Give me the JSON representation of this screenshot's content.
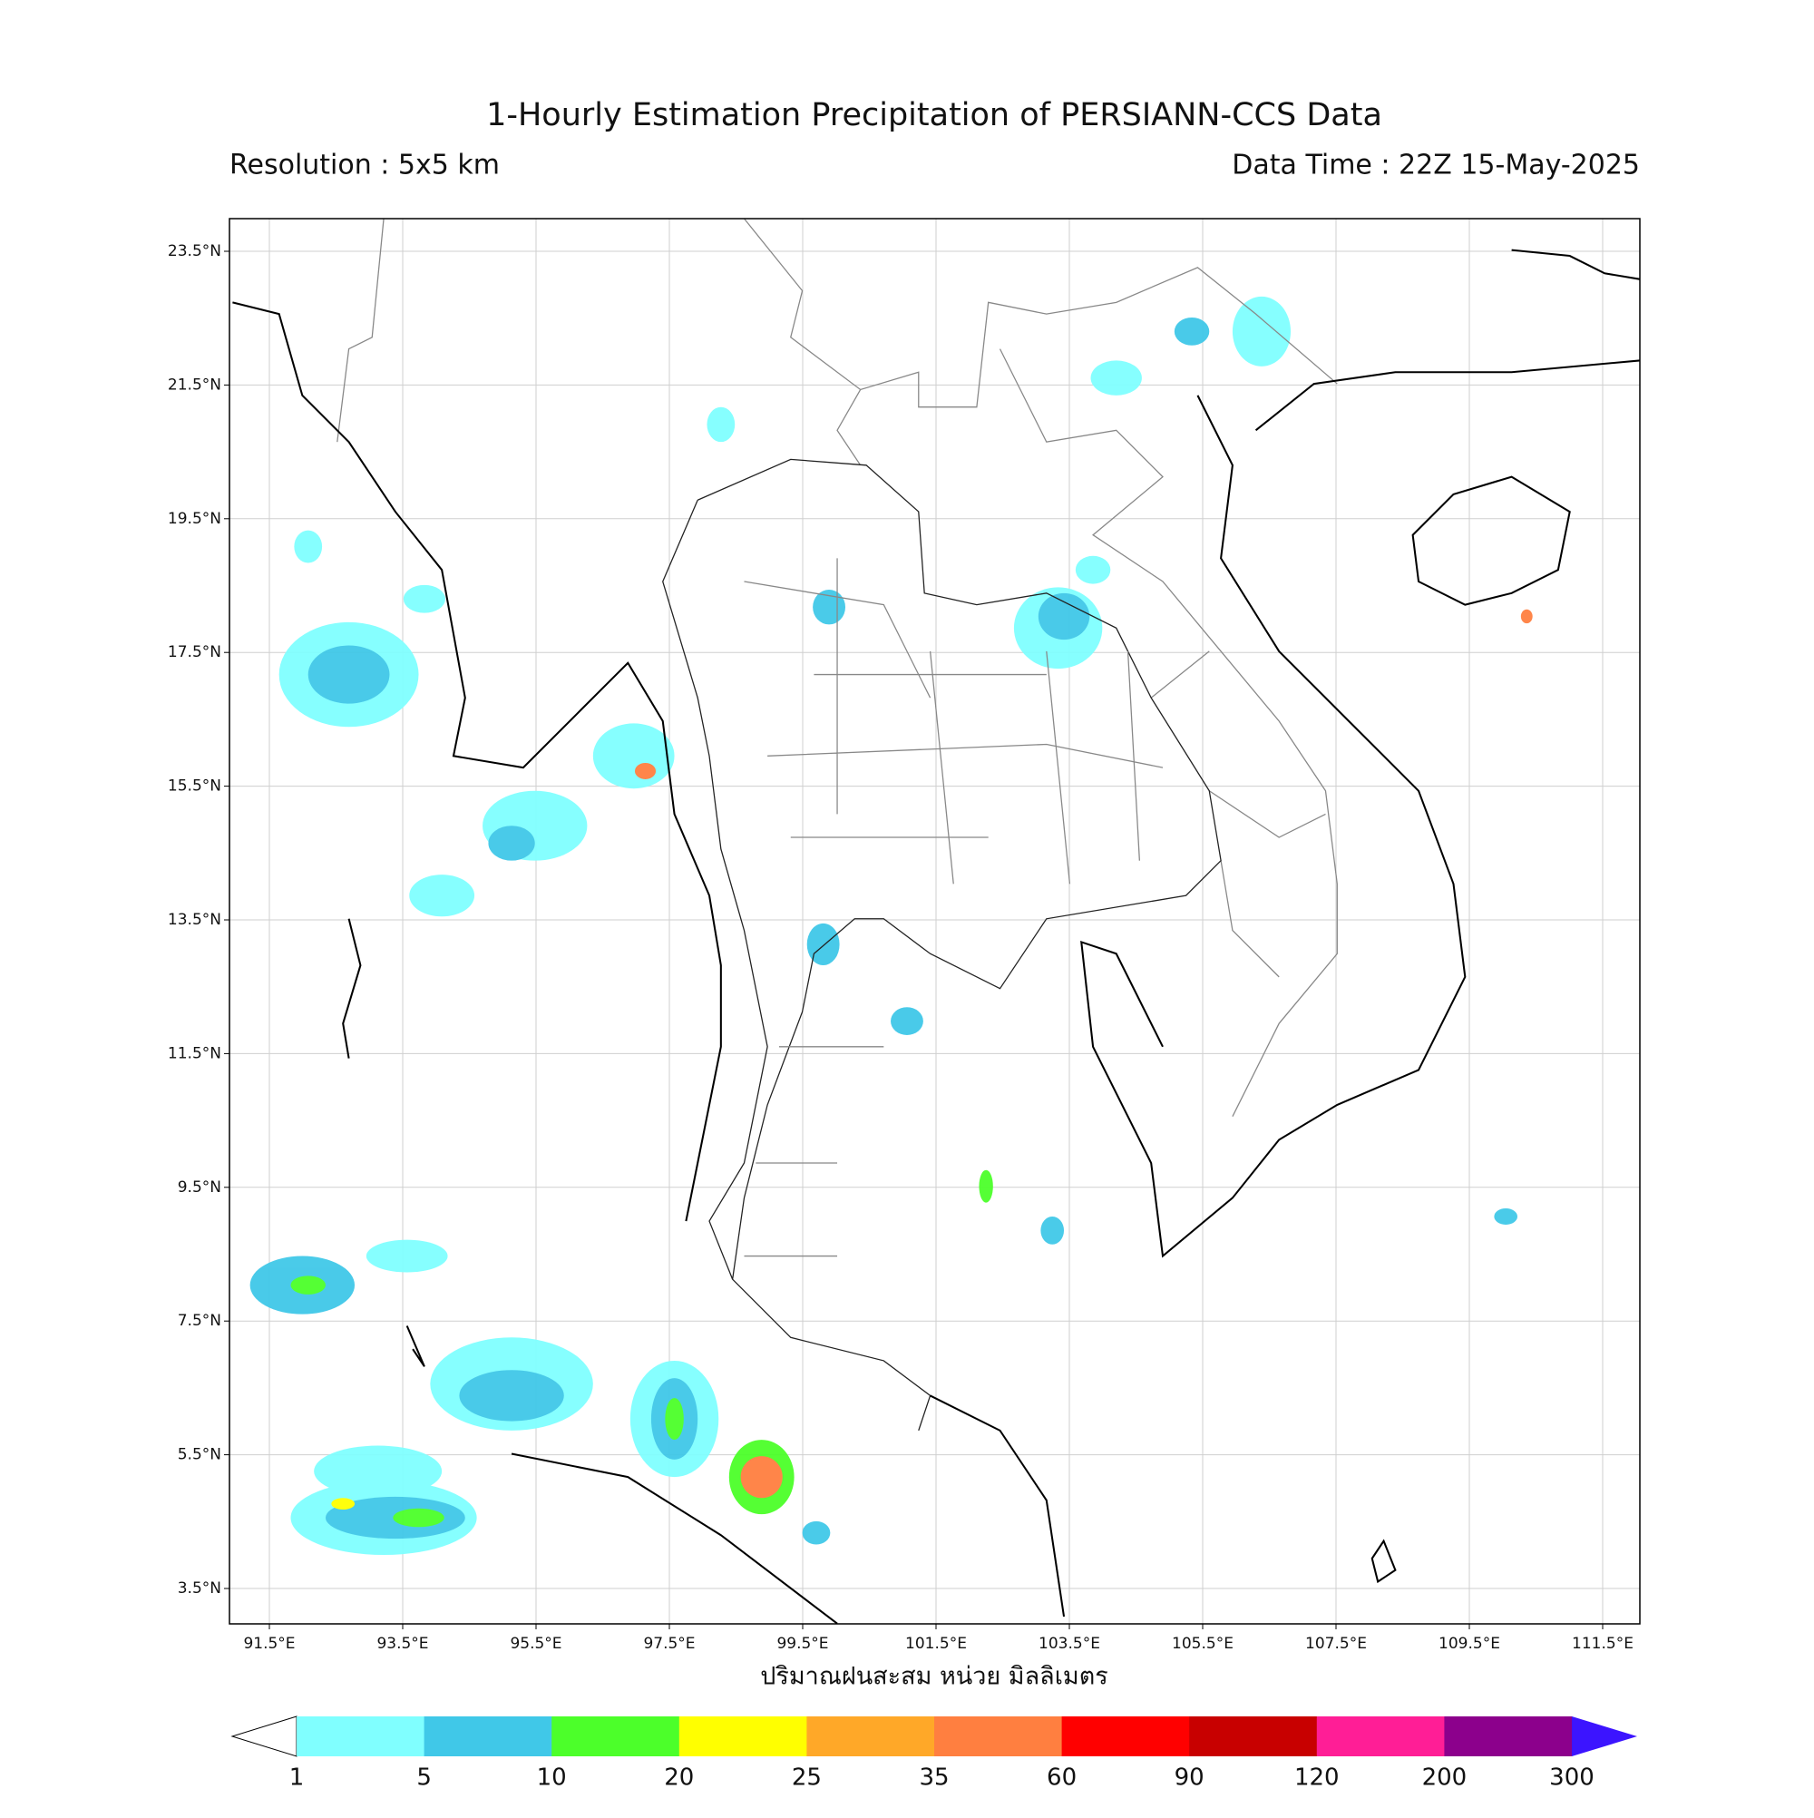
{
  "header": {
    "title": "1-Hourly Estimation Precipitation of PERSIANN-CCS Data",
    "resolution": "Resolution : 5x5 km",
    "data_time": "Data Time : 22Z 15-May-2025"
  },
  "map": {
    "lat_ticks": [
      {
        "value": 23.5,
        "label": "23.5°N"
      },
      {
        "value": 21.5,
        "label": "21.5°N"
      },
      {
        "value": 19.5,
        "label": "19.5°N"
      },
      {
        "value": 17.5,
        "label": "17.5°N"
      },
      {
        "value": 15.5,
        "label": "15.5°N"
      },
      {
        "value": 13.5,
        "label": "13.5°N"
      },
      {
        "value": 11.5,
        "label": "11.5°N"
      },
      {
        "value": 9.5,
        "label": "9.5°N"
      },
      {
        "value": 7.5,
        "label": "7.5°N"
      },
      {
        "value": 5.5,
        "label": "5.5°N"
      },
      {
        "value": 3.5,
        "label": "3.5°N"
      }
    ],
    "lon_ticks": [
      {
        "value": 91.5,
        "label": "91.5°E"
      },
      {
        "value": 93.5,
        "label": "93.5°E"
      },
      {
        "value": 95.5,
        "label": "95.5°E"
      },
      {
        "value": 97.5,
        "label": "97.5°E"
      },
      {
        "value": 99.5,
        "label": "99.5°E"
      },
      {
        "value": 101.5,
        "label": "101.5°E"
      },
      {
        "value": 103.5,
        "label": "103.5°E"
      },
      {
        "value": 105.5,
        "label": "105.5°E"
      },
      {
        "value": 107.5,
        "label": "107.5°E"
      },
      {
        "value": 109.5,
        "label": "109.5°E"
      },
      {
        "value": 111.5,
        "label": "111.5°E"
      }
    ],
    "xlabel": "ปริมาณฝนสะสม หน่วย มิลลิเมตร"
  },
  "colorbar": {
    "levels": [
      1,
      5,
      10,
      20,
      25,
      35,
      60,
      90,
      120,
      200,
      300
    ],
    "colors": [
      "#80ffff",
      "#40c8e8",
      "#4cff2a",
      "#ffff00",
      "#ffa828",
      "#ff7f40",
      "#ff0000",
      "#c80000",
      "#ff1e96",
      "#8c008c"
    ],
    "under_color": "#ffffff",
    "over_color": "#3c14ff"
  }
}
